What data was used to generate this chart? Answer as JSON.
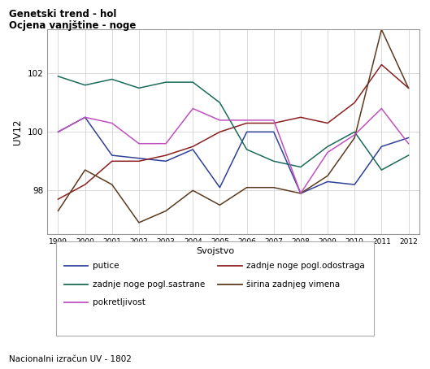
{
  "title1": "Genetski trend - hol",
  "title2": "Ocjena vanjštine - noge",
  "ylabel": "UV12",
  "footer": "Nacionalni izračun UV - 1802",
  "legend_title": "Svojstvo",
  "years": [
    1999,
    2000,
    2001,
    2002,
    2003,
    2004,
    2005,
    2006,
    2007,
    2008,
    2009,
    2010,
    2011,
    2012
  ],
  "series": {
    "putice": {
      "color": "#2f4099",
      "values": [
        100.0,
        100.5,
        99.2,
        99.1,
        99.0,
        99.4,
        98.1,
        100.0,
        100.0,
        97.9,
        98.3,
        98.2,
        99.5,
        99.8
      ]
    },
    "zadnje noge pogl.odostraga": {
      "color": "#8b2020",
      "values": [
        97.7,
        98.2,
        99.0,
        99.0,
        99.2,
        99.5,
        100.0,
        100.3,
        100.3,
        100.5,
        100.3,
        101.0,
        102.3,
        101.5
      ]
    },
    "zadnje noge pogl.sastrane": {
      "color": "#1a6b5a",
      "values": [
        101.9,
        101.6,
        101.8,
        101.5,
        101.7,
        101.7,
        101.0,
        99.4,
        99.0,
        98.8,
        99.5,
        100.0,
        98.7,
        99.2
      ]
    },
    "širina zadnjeg vimena": {
      "color": "#5c3a1e",
      "values": [
        97.3,
        98.7,
        98.2,
        96.9,
        97.3,
        98.0,
        97.5,
        98.1,
        98.1,
        97.9,
        98.5,
        99.8,
        103.5,
        101.5
      ]
    },
    "pokretljivost": {
      "color": "#c050c0",
      "values": [
        100.0,
        100.5,
        100.3,
        99.6,
        99.6,
        100.8,
        100.4,
        100.4,
        100.4,
        97.9,
        99.3,
        99.9,
        100.8,
        99.6
      ]
    }
  },
  "ylim": [
    96.5,
    103.5
  ],
  "yticks": [
    98,
    100,
    102
  ],
  "legend_order_left": [
    "putice",
    "zadnje noge pogl.sastrane",
    "pokretljivost"
  ],
  "legend_order_right": [
    "zadnje noge pogl.odostraga",
    "širina zadnjeg vimena"
  ]
}
